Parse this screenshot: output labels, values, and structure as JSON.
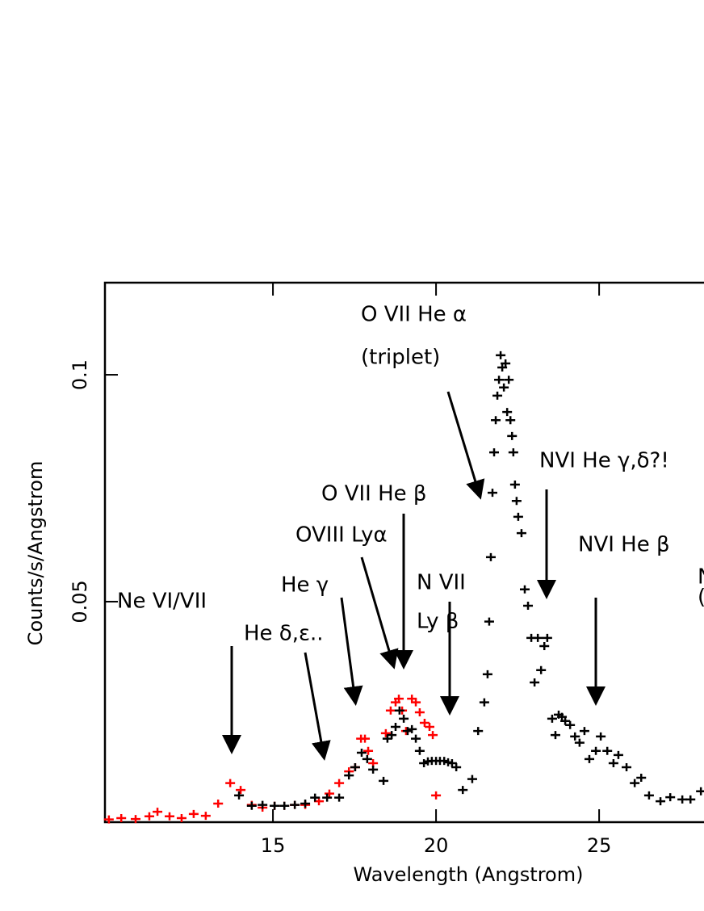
{
  "chart_data": {
    "type": "scatter",
    "xlabel": "Wavelength (Angstrom)",
    "ylabel": "Counts/s/Angstrom",
    "xlim": [
      9.85,
      28.2
    ],
    "ylim": [
      0.0014,
      0.1203
    ],
    "xticks": [
      15,
      20,
      25
    ],
    "yticks": [
      0.05,
      0.1
    ],
    "annotations": [
      "Ne VI/VII",
      "He δ,ε..",
      "He γ",
      "OVIII Lyα",
      "O VII He β",
      "N VII",
      "Ly β",
      "O VII He α",
      "(triplet)",
      "NVI He γ,δ?!",
      "NVI He β",
      "N",
      "("
    ],
    "series": [
      {
        "color": "#ff0000",
        "x": [
          9.97,
          10.35,
          10.79,
          11.21,
          11.46,
          11.83,
          12.2,
          12.57,
          12.94,
          13.32,
          13.69,
          14.01,
          14.35,
          14.68,
          15.05,
          15.35,
          15.67,
          15.99,
          16.41,
          16.73,
          17.03,
          17.33,
          17.52,
          17.7,
          17.82,
          17.92,
          18.07,
          18.46,
          18.61,
          18.76,
          18.86,
          18.96,
          19.08,
          19.26,
          19.38,
          19.5,
          19.65,
          19.8,
          19.9,
          20.0
        ],
        "values": [
          0.002,
          0.0023,
          0.0021,
          0.0027,
          0.0037,
          0.0027,
          0.0023,
          0.0032,
          0.0028,
          0.0055,
          0.01,
          0.0085,
          0.0052,
          0.0046,
          0.005,
          0.005,
          0.0052,
          0.0052,
          0.006,
          0.0077,
          0.01,
          0.0126,
          0.0135,
          0.0198,
          0.0198,
          0.0171,
          0.0144,
          0.021,
          0.026,
          0.0278,
          0.0286,
          0.026,
          0.0215,
          0.0286,
          0.0278,
          0.0256,
          0.0233,
          0.0224,
          0.0206,
          0.0073
        ]
      },
      {
        "color": "#000000",
        "x": [
          13.96,
          14.35,
          14.68,
          15.05,
          15.35,
          15.67,
          15.99,
          16.29,
          16.66,
          17.03,
          17.33,
          17.52,
          17.72,
          17.89,
          18.07,
          18.39,
          18.51,
          18.64,
          18.76,
          18.88,
          19.01,
          19.13,
          19.26,
          19.38,
          19.5,
          19.63,
          19.75,
          19.87,
          20.0,
          20.12,
          20.25,
          20.37,
          20.49,
          20.62,
          20.82,
          21.11,
          21.29,
          21.48,
          21.58,
          21.63,
          21.68,
          21.73,
          21.78,
          21.83,
          21.88,
          21.93,
          21.98,
          22.03,
          22.08,
          22.13,
          22.18,
          22.23,
          22.28,
          22.33,
          22.37,
          22.42,
          22.47,
          22.52,
          22.62,
          22.72,
          22.82,
          22.92,
          23.02,
          23.12,
          23.22,
          23.32,
          23.41,
          23.56,
          23.66,
          23.76,
          23.86,
          23.96,
          24.11,
          24.26,
          24.4,
          24.55,
          24.7,
          24.9,
          25.05,
          25.25,
          25.44,
          25.59,
          25.84,
          26.09,
          26.29,
          26.53,
          26.88,
          27.18,
          27.55,
          27.8,
          28.12
        ],
        "values": [
          0.0073,
          0.005,
          0.0052,
          0.005,
          0.005,
          0.0052,
          0.0055,
          0.0068,
          0.0068,
          0.0068,
          0.0117,
          0.0135,
          0.0167,
          0.0153,
          0.013,
          0.0105,
          0.0198,
          0.0206,
          0.0224,
          0.026,
          0.0242,
          0.0215,
          0.0219,
          0.0198,
          0.0171,
          0.0144,
          0.0148,
          0.0149,
          0.0149,
          0.0149,
          0.0149,
          0.0146,
          0.0144,
          0.0135,
          0.0085,
          0.0109,
          0.0215,
          0.0278,
          0.034,
          0.0456,
          0.0598,
          0.074,
          0.0829,
          0.09,
          0.0954,
          0.0989,
          0.1043,
          0.1016,
          0.0972,
          0.1025,
          0.0918,
          0.0989,
          0.09,
          0.0865,
          0.0829,
          0.0758,
          0.0722,
          0.0687,
          0.0651,
          0.0527,
          0.0491,
          0.042,
          0.0322,
          0.042,
          0.0349,
          0.0402,
          0.042,
          0.0242,
          0.0206,
          0.0251,
          0.0246,
          0.0237,
          0.0228,
          0.0203,
          0.0189,
          0.0215,
          0.0153,
          0.0171,
          0.0203,
          0.0171,
          0.0144,
          0.0162,
          0.0135,
          0.01,
          0.0112,
          0.0073,
          0.006,
          0.0069,
          0.0064,
          0.0064,
          0.0082
        ]
      }
    ]
  }
}
